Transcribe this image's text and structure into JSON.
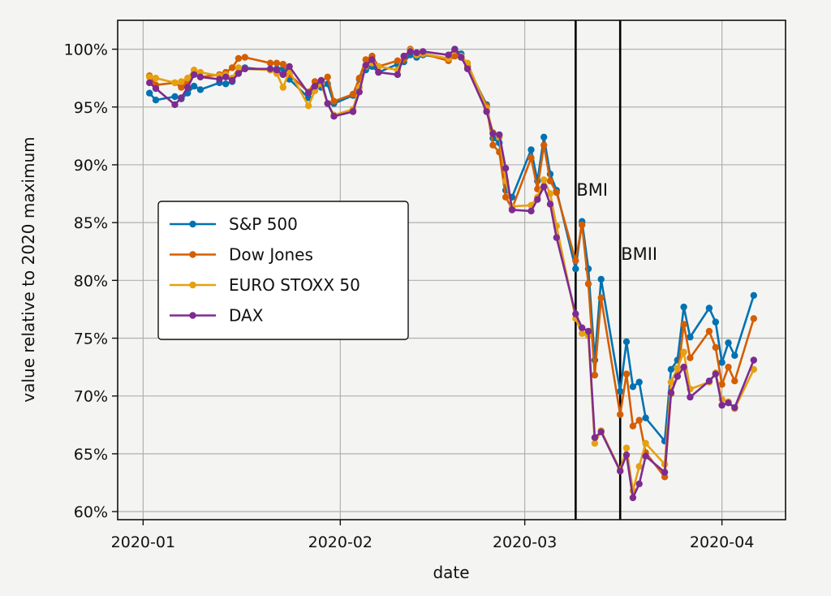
{
  "chart_data": {
    "type": "line",
    "xlabel": "date",
    "ylabel": "value relative to 2020 maximum",
    "x_tick_labels": [
      "2020-01",
      "2020-02",
      "2020-03",
      "2020-04"
    ],
    "x_ticks": [
      "2020-01-01",
      "2020-02-01",
      "2020-03-01",
      "2020-04-01"
    ],
    "y_tick_labels": [
      "60%",
      "65%",
      "70%",
      "75%",
      "80%",
      "85%",
      "90%",
      "95%",
      "100%"
    ],
    "y_ticks": [
      60,
      65,
      70,
      75,
      80,
      85,
      90,
      95,
      100
    ],
    "xlim": [
      "2019-12-28",
      "2020-04-11"
    ],
    "ylim": [
      59.3,
      102.5
    ],
    "grid": true,
    "legend_position": "center-left",
    "annotations": [
      {
        "label": "BMI",
        "date": "2020-03-09"
      },
      {
        "label": "BMII",
        "date": "2020-03-16"
      }
    ],
    "series": [
      {
        "name": "S&P 500",
        "color": "#0072b2",
        "points": [
          [
            "2020-01-02",
            96.2
          ],
          [
            "2020-01-03",
            95.6
          ],
          [
            "2020-01-06",
            95.9
          ],
          [
            "2020-01-07",
            95.7
          ],
          [
            "2020-01-08",
            96.2
          ],
          [
            "2020-01-09",
            96.8
          ],
          [
            "2020-01-10",
            96.5
          ],
          [
            "2020-01-13",
            97.1
          ],
          [
            "2020-01-14",
            97.0
          ],
          [
            "2020-01-15",
            97.2
          ],
          [
            "2020-01-16",
            98.0
          ],
          [
            "2020-01-17",
            98.4
          ],
          [
            "2020-01-21",
            98.2
          ],
          [
            "2020-01-22",
            98.3
          ],
          [
            "2020-01-23",
            98.3
          ],
          [
            "2020-01-24",
            97.4
          ],
          [
            "2020-01-27",
            95.8
          ],
          [
            "2020-01-28",
            96.8
          ],
          [
            "2020-01-29",
            96.7
          ],
          [
            "2020-01-30",
            97.0
          ],
          [
            "2020-01-31",
            95.3
          ],
          [
            "2020-02-03",
            96.0
          ],
          [
            "2020-02-04",
            97.4
          ],
          [
            "2020-02-05",
            98.2
          ],
          [
            "2020-02-06",
            98.5
          ],
          [
            "2020-02-07",
            98.0
          ],
          [
            "2020-02-10",
            98.7
          ],
          [
            "2020-02-11",
            98.9
          ],
          [
            "2020-02-12",
            99.5
          ],
          [
            "2020-02-13",
            99.3
          ],
          [
            "2020-02-14",
            99.5
          ],
          [
            "2020-02-18",
            99.2
          ],
          [
            "2020-02-19",
            100.0
          ],
          [
            "2020-02-20",
            99.6
          ],
          [
            "2020-02-21",
            98.5
          ],
          [
            "2020-02-24",
            95.2
          ],
          [
            "2020-02-25",
            92.3
          ],
          [
            "2020-02-26",
            91.9
          ],
          [
            "2020-02-27",
            87.8
          ],
          [
            "2020-02-28",
            87.2
          ],
          [
            "2020-03-02",
            91.3
          ],
          [
            "2020-03-03",
            88.6
          ],
          [
            "2020-03-04",
            92.4
          ],
          [
            "2020-03-05",
            89.2
          ],
          [
            "2020-03-06",
            87.8
          ],
          [
            "2020-03-09",
            81.0
          ],
          [
            "2020-03-10",
            85.1
          ],
          [
            "2020-03-11",
            81.0
          ],
          [
            "2020-03-12",
            73.1
          ],
          [
            "2020-03-13",
            80.1
          ],
          [
            "2020-03-16",
            70.4
          ],
          [
            "2020-03-17",
            74.7
          ],
          [
            "2020-03-18",
            70.8
          ],
          [
            "2020-03-19",
            71.2
          ],
          [
            "2020-03-20",
            68.1
          ],
          [
            "2020-03-23",
            66.1
          ],
          [
            "2020-03-24",
            72.3
          ],
          [
            "2020-03-25",
            73.1
          ],
          [
            "2020-03-26",
            77.7
          ],
          [
            "2020-03-27",
            75.1
          ],
          [
            "2020-03-30",
            77.6
          ],
          [
            "2020-03-31",
            76.4
          ],
          [
            "2020-04-01",
            72.9
          ],
          [
            "2020-04-02",
            74.6
          ],
          [
            "2020-04-03",
            73.5
          ],
          [
            "2020-04-06",
            78.7
          ]
        ]
      },
      {
        "name": "Dow Jones",
        "color": "#d55e00",
        "points": [
          [
            "2020-01-02",
            97.7
          ],
          [
            "2020-01-03",
            96.9
          ],
          [
            "2020-01-06",
            97.1
          ],
          [
            "2020-01-07",
            96.7
          ],
          [
            "2020-01-08",
            97.2
          ],
          [
            "2020-01-09",
            97.9
          ],
          [
            "2020-01-10",
            97.6
          ],
          [
            "2020-01-13",
            97.8
          ],
          [
            "2020-01-14",
            98.0
          ],
          [
            "2020-01-15",
            98.4
          ],
          [
            "2020-01-16",
            99.2
          ],
          [
            "2020-01-17",
            99.3
          ],
          [
            "2020-01-21",
            98.8
          ],
          [
            "2020-01-22",
            98.8
          ],
          [
            "2020-01-23",
            98.7
          ],
          [
            "2020-01-24",
            97.8
          ],
          [
            "2020-01-27",
            96.3
          ],
          [
            "2020-01-28",
            97.2
          ],
          [
            "2020-01-29",
            97.2
          ],
          [
            "2020-01-30",
            97.6
          ],
          [
            "2020-01-31",
            95.5
          ],
          [
            "2020-02-03",
            96.1
          ],
          [
            "2020-02-04",
            97.5
          ],
          [
            "2020-02-05",
            99.1
          ],
          [
            "2020-02-06",
            99.4
          ],
          [
            "2020-02-07",
            98.5
          ],
          [
            "2020-02-10",
            99.0
          ],
          [
            "2020-02-11",
            99.1
          ],
          [
            "2020-02-12",
            100.0
          ],
          [
            "2020-02-13",
            99.5
          ],
          [
            "2020-02-14",
            99.6
          ],
          [
            "2020-02-18",
            99.0
          ],
          [
            "2020-02-19",
            99.4
          ],
          [
            "2020-02-20",
            99.3
          ],
          [
            "2020-02-21",
            98.5
          ],
          [
            "2020-02-24",
            95.1
          ],
          [
            "2020-02-25",
            91.7
          ],
          [
            "2020-02-26",
            91.1
          ],
          [
            "2020-02-27",
            87.2
          ],
          [
            "2020-02-28",
            86.2
          ],
          [
            "2020-03-02",
            90.6
          ],
          [
            "2020-03-03",
            87.9
          ],
          [
            "2020-03-04",
            91.7
          ],
          [
            "2020-03-05",
            88.6
          ],
          [
            "2020-03-06",
            87.6
          ],
          [
            "2020-03-09",
            81.7
          ],
          [
            "2020-03-10",
            84.8
          ],
          [
            "2020-03-11",
            79.7
          ],
          [
            "2020-03-12",
            71.8
          ],
          [
            "2020-03-13",
            78.5
          ],
          [
            "2020-03-16",
            68.4
          ],
          [
            "2020-03-17",
            71.9
          ],
          [
            "2020-03-18",
            67.4
          ],
          [
            "2020-03-19",
            67.9
          ],
          [
            "2020-03-20",
            65.1
          ],
          [
            "2020-03-23",
            63.0
          ],
          [
            "2020-03-24",
            70.2
          ],
          [
            "2020-03-25",
            71.7
          ],
          [
            "2020-03-26",
            76.2
          ],
          [
            "2020-03-27",
            73.3
          ],
          [
            "2020-03-30",
            75.6
          ],
          [
            "2020-03-31",
            74.2
          ],
          [
            "2020-04-01",
            71.0
          ],
          [
            "2020-04-02",
            72.5
          ],
          [
            "2020-04-03",
            71.3
          ],
          [
            "2020-04-06",
            76.7
          ]
        ]
      },
      {
        "name": "EURO STOXX 50",
        "color": "#e6a010",
        "points": [
          [
            "2020-01-02",
            97.6
          ],
          [
            "2020-01-03",
            97.5
          ],
          [
            "2020-01-06",
            97.1
          ],
          [
            "2020-01-07",
            97.2
          ],
          [
            "2020-01-08",
            97.5
          ],
          [
            "2020-01-09",
            98.2
          ],
          [
            "2020-01-10",
            98.0
          ],
          [
            "2020-01-13",
            97.7
          ],
          [
            "2020-01-14",
            97.8
          ],
          [
            "2020-01-15",
            97.5
          ],
          [
            "2020-01-16",
            98.4
          ],
          [
            "2020-01-17",
            98.3
          ],
          [
            "2020-01-21",
            98.2
          ],
          [
            "2020-01-22",
            97.9
          ],
          [
            "2020-01-23",
            96.7
          ],
          [
            "2020-01-24",
            98.1
          ],
          [
            "2020-01-27",
            95.1
          ],
          [
            "2020-01-28",
            96.4
          ],
          [
            "2020-01-29",
            97.0
          ],
          [
            "2020-01-30",
            95.3
          ],
          [
            "2020-01-31",
            94.3
          ],
          [
            "2020-02-03",
            94.8
          ],
          [
            "2020-02-04",
            96.7
          ],
          [
            "2020-02-05",
            98.5
          ],
          [
            "2020-02-06",
            98.8
          ],
          [
            "2020-02-07",
            98.5
          ],
          [
            "2020-02-10",
            98.2
          ],
          [
            "2020-02-11",
            99.4
          ],
          [
            "2020-02-12",
            99.9
          ],
          [
            "2020-02-13",
            99.5
          ],
          [
            "2020-02-14",
            99.6
          ],
          [
            "2020-02-18",
            99.2
          ],
          [
            "2020-02-19",
            99.9
          ],
          [
            "2020-02-20",
            99.4
          ],
          [
            "2020-02-21",
            98.8
          ],
          [
            "2020-02-24",
            94.9
          ],
          [
            "2020-02-25",
            92.8
          ],
          [
            "2020-02-26",
            92.4
          ],
          [
            "2020-02-27",
            88.6
          ],
          [
            "2020-02-28",
            86.4
          ],
          [
            "2020-03-02",
            86.5
          ],
          [
            "2020-03-03",
            87.2
          ],
          [
            "2020-03-04",
            88.7
          ],
          [
            "2020-03-05",
            87.5
          ],
          [
            "2020-03-06",
            84.7
          ],
          [
            "2020-03-09",
            76.7
          ],
          [
            "2020-03-10",
            75.4
          ],
          [
            "2020-03-11",
            75.2
          ],
          [
            "2020-03-12",
            65.9
          ],
          [
            "2020-03-13",
            67.0
          ],
          [
            "2020-03-16",
            63.6
          ],
          [
            "2020-03-17",
            65.5
          ],
          [
            "2020-03-18",
            61.8
          ],
          [
            "2020-03-19",
            63.9
          ],
          [
            "2020-03-20",
            65.9
          ],
          [
            "2020-03-23",
            64.1
          ],
          [
            "2020-03-24",
            71.2
          ],
          [
            "2020-03-25",
            72.4
          ],
          [
            "2020-03-26",
            73.8
          ],
          [
            "2020-03-27",
            70.6
          ],
          [
            "2020-03-30",
            71.2
          ],
          [
            "2020-03-31",
            72.0
          ],
          [
            "2020-04-01",
            69.7
          ],
          [
            "2020-04-02",
            69.5
          ],
          [
            "2020-04-03",
            68.9
          ],
          [
            "2020-04-06",
            72.3
          ]
        ]
      },
      {
        "name": "DAX",
        "color": "#7e2b90",
        "points": [
          [
            "2020-01-02",
            97.1
          ],
          [
            "2020-01-03",
            96.6
          ],
          [
            "2020-01-06",
            95.2
          ],
          [
            "2020-01-07",
            95.8
          ],
          [
            "2020-01-08",
            96.7
          ],
          [
            "2020-01-09",
            97.8
          ],
          [
            "2020-01-10",
            97.6
          ],
          [
            "2020-01-13",
            97.4
          ],
          [
            "2020-01-14",
            97.6
          ],
          [
            "2020-01-15",
            97.3
          ],
          [
            "2020-01-16",
            97.9
          ],
          [
            "2020-01-17",
            98.3
          ],
          [
            "2020-01-21",
            98.3
          ],
          [
            "2020-01-22",
            98.2
          ],
          [
            "2020-01-23",
            97.8
          ],
          [
            "2020-01-24",
            98.5
          ],
          [
            "2020-01-27",
            96.2
          ],
          [
            "2020-01-28",
            96.8
          ],
          [
            "2020-01-29",
            97.3
          ],
          [
            "2020-01-30",
            95.3
          ],
          [
            "2020-01-31",
            94.2
          ],
          [
            "2020-02-03",
            94.6
          ],
          [
            "2020-02-04",
            96.3
          ],
          [
            "2020-02-05",
            98.6
          ],
          [
            "2020-02-06",
            99.1
          ],
          [
            "2020-02-07",
            98.0
          ],
          [
            "2020-02-10",
            97.8
          ],
          [
            "2020-02-11",
            99.4
          ],
          [
            "2020-02-12",
            99.8
          ],
          [
            "2020-02-13",
            99.7
          ],
          [
            "2020-02-14",
            99.8
          ],
          [
            "2020-02-18",
            99.5
          ],
          [
            "2020-02-19",
            100.0
          ],
          [
            "2020-02-20",
            99.3
          ],
          [
            "2020-02-21",
            98.3
          ],
          [
            "2020-02-24",
            94.6
          ],
          [
            "2020-02-25",
            92.7
          ],
          [
            "2020-02-26",
            92.6
          ],
          [
            "2020-02-27",
            89.7
          ],
          [
            "2020-02-28",
            86.1
          ],
          [
            "2020-03-02",
            86.0
          ],
          [
            "2020-03-03",
            87.0
          ],
          [
            "2020-03-04",
            88.1
          ],
          [
            "2020-03-05",
            86.6
          ],
          [
            "2020-03-06",
            83.7
          ],
          [
            "2020-03-09",
            77.1
          ],
          [
            "2020-03-10",
            75.9
          ],
          [
            "2020-03-11",
            75.6
          ],
          [
            "2020-03-12",
            66.4
          ],
          [
            "2020-03-13",
            66.9
          ],
          [
            "2020-03-16",
            63.5
          ],
          [
            "2020-03-17",
            64.9
          ],
          [
            "2020-03-18",
            61.2
          ],
          [
            "2020-03-19",
            62.4
          ],
          [
            "2020-03-20",
            64.8
          ],
          [
            "2020-03-23",
            63.4
          ],
          [
            "2020-03-24",
            70.3
          ],
          [
            "2020-03-25",
            71.7
          ],
          [
            "2020-03-26",
            72.5
          ],
          [
            "2020-03-27",
            69.9
          ],
          [
            "2020-03-30",
            71.3
          ],
          [
            "2020-03-31",
            71.9
          ],
          [
            "2020-04-01",
            69.2
          ],
          [
            "2020-04-02",
            69.4
          ],
          [
            "2020-04-03",
            69.0
          ],
          [
            "2020-04-06",
            73.1
          ]
        ]
      }
    ]
  }
}
